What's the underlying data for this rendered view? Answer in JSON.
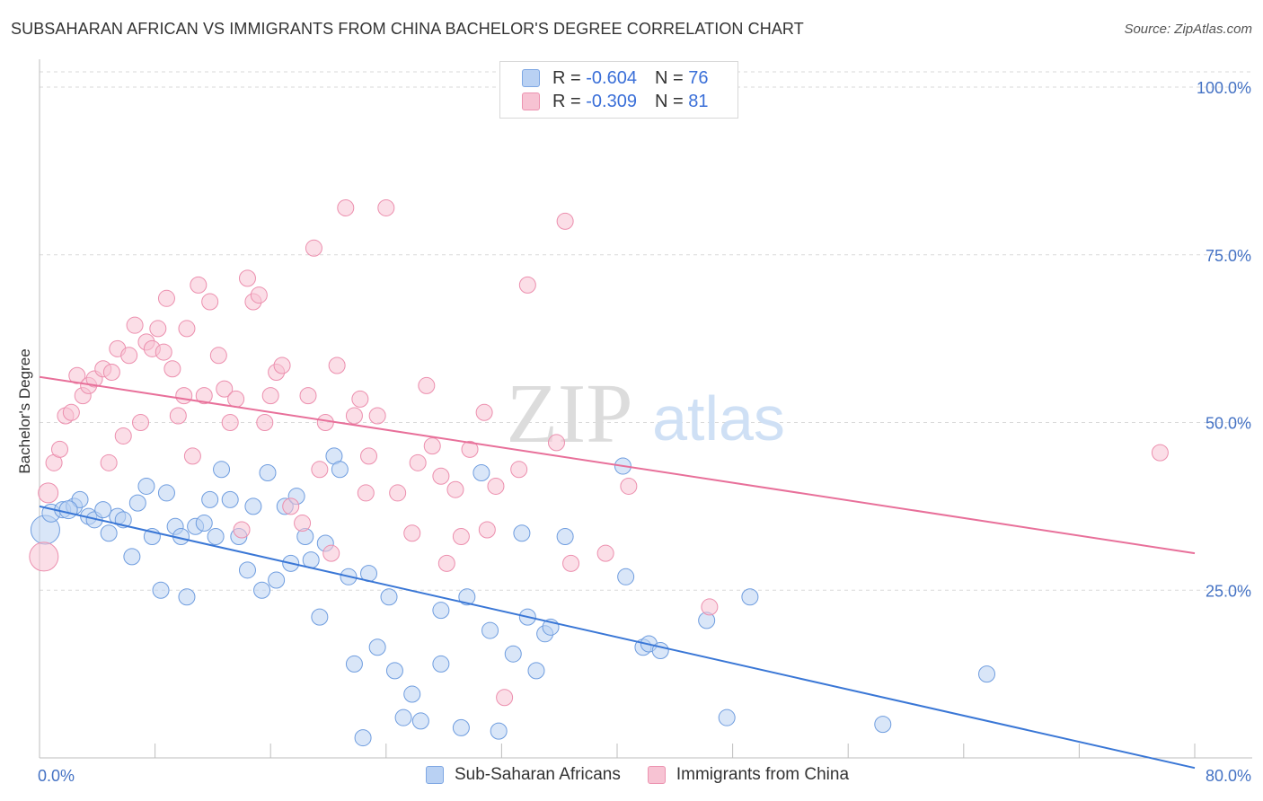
{
  "title": "SUBSAHARAN AFRICAN VS IMMIGRANTS FROM CHINA BACHELOR'S DEGREE CORRELATION CHART",
  "source": "Source: ZipAtlas.com",
  "watermark": {
    "zip": "ZIP",
    "atlas": "atlas"
  },
  "colors": {
    "blue": "#3a77d6",
    "pink": "#e8709a",
    "blue_fill": "#b9d1f3",
    "pink_fill": "#f7c3d3",
    "axis_label": "#4472c4"
  },
  "legend": {
    "r_label": "R =",
    "n_label": "N =",
    "rows": [
      {
        "r": "-0.604",
        "n": "76",
        "color": "blue"
      },
      {
        "r": "-0.309",
        "n": "81",
        "color": "pink"
      }
    ]
  },
  "bottom_legend": [
    "Sub-Saharan Africans",
    "Immigrants from China"
  ],
  "chart_data": {
    "type": "scatter",
    "title": "SUBSAHARAN AFRICAN VS IMMIGRANTS FROM CHINA BACHELOR'S DEGREE CORRELATION CHART",
    "xlabel": "",
    "ylabel": "Bachelor's Degree",
    "xlim": [
      0,
      80
    ],
    "ylim": [
      0,
      100
    ],
    "x_tick_labels": [
      "0.0%",
      "80.0%"
    ],
    "y_tick_labels": [
      "25.0%",
      "50.0%",
      "75.0%",
      "100.0%"
    ],
    "y_ticks": [
      25,
      50,
      75,
      100
    ],
    "grid": true,
    "legend_placement": "top-center",
    "series": [
      {
        "name": "Sub-Saharan Africans",
        "color": "blue",
        "trend": {
          "x": [
            0,
            80
          ],
          "y": [
            37.5,
            -1.5
          ]
        },
        "points": [
          [
            0.4,
            34,
            16
          ],
          [
            0.8,
            36.5,
            10
          ],
          [
            1.6,
            37,
            9
          ],
          [
            2.4,
            37.5,
            9
          ],
          [
            2.8,
            38.5,
            9
          ],
          [
            3.4,
            36,
            9
          ],
          [
            3.8,
            35.5,
            9
          ],
          [
            4.4,
            37,
            9
          ],
          [
            4.8,
            33.5,
            9
          ],
          [
            5.4,
            36,
            9
          ],
          [
            5.8,
            35.5,
            9
          ],
          [
            6.4,
            30,
            9
          ],
          [
            6.8,
            38,
            9
          ],
          [
            7.4,
            40.5,
            9
          ],
          [
            7.8,
            33,
            9
          ],
          [
            8.4,
            25,
            9
          ],
          [
            8.8,
            39.5,
            9
          ],
          [
            9.4,
            34.5,
            9
          ],
          [
            9.8,
            33,
            9
          ],
          [
            10.2,
            24,
            9
          ],
          [
            10.8,
            34.5,
            9
          ],
          [
            11.4,
            35,
            9
          ],
          [
            11.8,
            38.5,
            9
          ],
          [
            12.2,
            33,
            9
          ],
          [
            12.6,
            43,
            9
          ],
          [
            13.2,
            38.5,
            9
          ],
          [
            13.8,
            33,
            9
          ],
          [
            14.4,
            28,
            9
          ],
          [
            14.8,
            37.5,
            9
          ],
          [
            15.4,
            25,
            9
          ],
          [
            15.8,
            42.5,
            9
          ],
          [
            16.4,
            26.5,
            9
          ],
          [
            17,
            37.5,
            9
          ],
          [
            17.4,
            29,
            9
          ],
          [
            17.8,
            39,
            9
          ],
          [
            18.4,
            33,
            9
          ],
          [
            18.8,
            29.5,
            9
          ],
          [
            19.4,
            21,
            9
          ],
          [
            19.8,
            32,
            9
          ],
          [
            20.4,
            45,
            9
          ],
          [
            20.8,
            43,
            9
          ],
          [
            21.4,
            27,
            9
          ],
          [
            21.8,
            14,
            9
          ],
          [
            22.4,
            3,
            9
          ],
          [
            22.8,
            27.5,
            9
          ],
          [
            23.4,
            16.5,
            9
          ],
          [
            24.2,
            24,
            9
          ],
          [
            24.6,
            13,
            9
          ],
          [
            25.2,
            6,
            9
          ],
          [
            25.8,
            9.5,
            9
          ],
          [
            26.4,
            5.5,
            9
          ],
          [
            27.8,
            22,
            9
          ],
          [
            27.8,
            14,
            9
          ],
          [
            29.2,
            4.5,
            9
          ],
          [
            29.6,
            24,
            9
          ],
          [
            30.6,
            42.5,
            9
          ],
          [
            31.2,
            19,
            9
          ],
          [
            31.8,
            4,
            9
          ],
          [
            32.8,
            15.5,
            9
          ],
          [
            33.4,
            33.5,
            9
          ],
          [
            33.8,
            21,
            9
          ],
          [
            34.4,
            13,
            9
          ],
          [
            35,
            18.5,
            9
          ],
          [
            35.4,
            19.5,
            9
          ],
          [
            36.4,
            33,
            9
          ],
          [
            40.4,
            43.5,
            9
          ],
          [
            40.6,
            27,
            9
          ],
          [
            41.8,
            16.5,
            9
          ],
          [
            42.2,
            17,
            9
          ],
          [
            43,
            16,
            9
          ],
          [
            46.2,
            20.5,
            9
          ],
          [
            47.6,
            6,
            9
          ],
          [
            49.2,
            24,
            9
          ],
          [
            58.4,
            5,
            9
          ],
          [
            65.6,
            12.5,
            9
          ],
          [
            2,
            37,
            10
          ]
        ]
      },
      {
        "name": "Immigrants from China",
        "color": "pink",
        "trend": {
          "x": [
            0,
            80
          ],
          "y": [
            56.8,
            30.5
          ]
        },
        "points": [
          [
            0.3,
            30,
            16
          ],
          [
            0.6,
            39.5,
            11
          ],
          [
            1,
            44,
            9
          ],
          [
            1.4,
            46,
            9
          ],
          [
            1.8,
            51,
            9
          ],
          [
            2.2,
            51.5,
            9
          ],
          [
            2.6,
            57,
            9
          ],
          [
            3,
            54,
            9
          ],
          [
            3.4,
            55.5,
            9
          ],
          [
            3.8,
            56.5,
            9
          ],
          [
            4.4,
            58,
            9
          ],
          [
            4.8,
            44,
            9
          ],
          [
            5,
            57.5,
            9
          ],
          [
            5.4,
            61,
            9
          ],
          [
            5.8,
            48,
            9
          ],
          [
            6.2,
            60,
            9
          ],
          [
            6.6,
            64.5,
            9
          ],
          [
            7,
            50,
            9
          ],
          [
            7.4,
            62,
            9
          ],
          [
            7.8,
            61,
            9
          ],
          [
            8.2,
            64,
            9
          ],
          [
            8.6,
            60.5,
            9
          ],
          [
            8.8,
            68.5,
            9
          ],
          [
            9.2,
            58,
            9
          ],
          [
            9.6,
            51,
            9
          ],
          [
            10,
            54,
            9
          ],
          [
            10.2,
            64,
            9
          ],
          [
            10.6,
            45,
            9
          ],
          [
            11,
            70.5,
            9
          ],
          [
            11.4,
            54,
            9
          ],
          [
            11.8,
            68,
            9
          ],
          [
            12.4,
            60,
            9
          ],
          [
            12.8,
            55,
            9
          ],
          [
            13.2,
            50,
            9
          ],
          [
            13.6,
            53.5,
            9
          ],
          [
            14,
            34,
            9
          ],
          [
            14.4,
            71.5,
            9
          ],
          [
            14.8,
            68,
            9
          ],
          [
            15.2,
            69,
            9
          ],
          [
            15.6,
            50,
            9
          ],
          [
            16,
            54,
            9
          ],
          [
            16.4,
            57.5,
            9
          ],
          [
            16.8,
            58.5,
            9
          ],
          [
            17.4,
            37.5,
            9
          ],
          [
            18.2,
            35,
            9
          ],
          [
            18.6,
            54,
            9
          ],
          [
            19,
            76,
            9
          ],
          [
            19.4,
            43,
            9
          ],
          [
            19.8,
            50,
            9
          ],
          [
            20.2,
            30.5,
            9
          ],
          [
            20.6,
            58.5,
            9
          ],
          [
            21.2,
            82,
            9
          ],
          [
            21.8,
            51,
            9
          ],
          [
            22.2,
            53.5,
            9
          ],
          [
            22.6,
            39.5,
            9
          ],
          [
            22.8,
            45,
            9
          ],
          [
            23.4,
            51,
            9
          ],
          [
            24,
            82,
            9
          ],
          [
            24.8,
            39.5,
            9
          ],
          [
            25.8,
            33.5,
            9
          ],
          [
            26.2,
            44,
            9
          ],
          [
            26.8,
            55.5,
            9
          ],
          [
            27.2,
            46.5,
            9
          ],
          [
            27.8,
            42,
            9
          ],
          [
            28.2,
            29,
            9
          ],
          [
            28.8,
            40,
            9
          ],
          [
            29.2,
            33,
            9
          ],
          [
            29.8,
            46,
            9
          ],
          [
            30.8,
            51.5,
            9
          ],
          [
            31,
            34,
            9
          ],
          [
            31.6,
            40.5,
            9
          ],
          [
            32.2,
            9,
            9
          ],
          [
            33.2,
            43,
            9
          ],
          [
            33.8,
            70.5,
            9
          ],
          [
            35.8,
            47,
            9
          ],
          [
            36.4,
            80,
            9
          ],
          [
            36.8,
            29,
            9
          ],
          [
            39.2,
            30.5,
            9
          ],
          [
            40.8,
            40.5,
            9
          ],
          [
            46.4,
            22.5,
            9
          ],
          [
            77.6,
            45.5,
            9
          ]
        ]
      }
    ]
  }
}
